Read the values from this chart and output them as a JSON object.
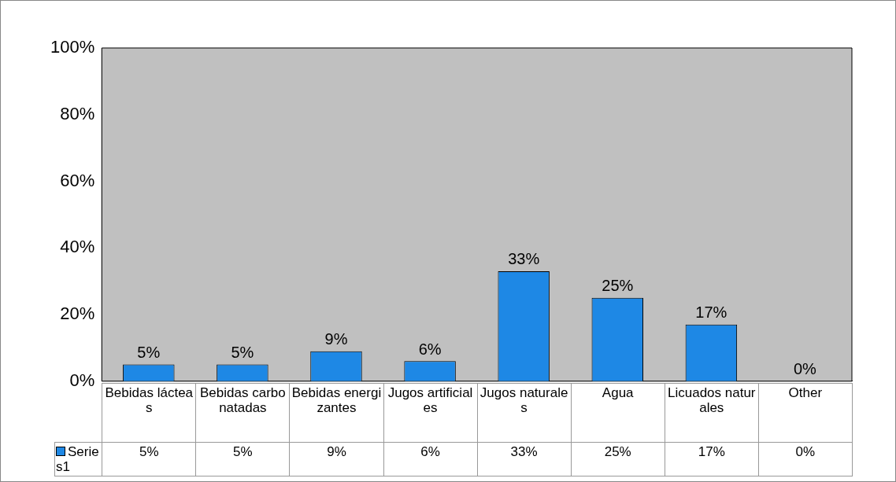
{
  "chart_data": {
    "type": "bar",
    "categories": [
      "Bebidas lácteas",
      "Bebidas carbonatadas",
      "Bebidas energizantes",
      "Jugos artificiales",
      "Jugos naturales",
      "Agua",
      "Licuados naturales",
      "Other"
    ],
    "series": [
      {
        "name": "Series1",
        "color": "#1e88e5",
        "values": [
          5,
          5,
          9,
          6,
          33,
          25,
          17,
          0
        ],
        "value_labels": [
          "5%",
          "5%",
          "9%",
          "6%",
          "33%",
          "25%",
          "17%",
          "0%"
        ]
      }
    ],
    "ylim": [
      0,
      100
    ],
    "yticks": [
      {
        "value": 0,
        "label": "0%"
      },
      {
        "value": 20,
        "label": "20%"
      },
      {
        "value": 40,
        "label": "40%"
      },
      {
        "value": 60,
        "label": "60%"
      },
      {
        "value": 80,
        "label": "80%"
      },
      {
        "value": 100,
        "label": "100%"
      }
    ],
    "legend": "bottom"
  }
}
